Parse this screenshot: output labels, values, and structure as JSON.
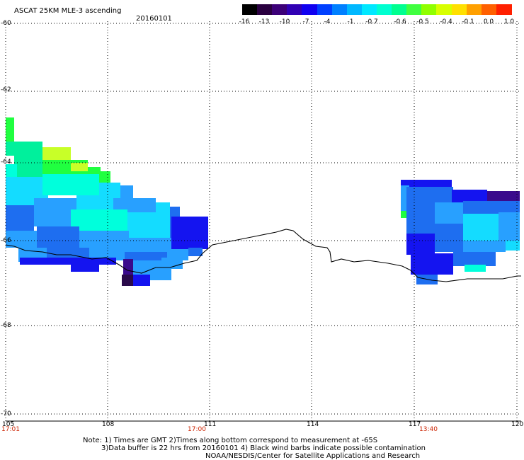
{
  "title": "ASCAT 25KM MLE-3 ascending",
  "date": "20160101",
  "colorbar": {
    "labels": [
      "-16",
      "-13",
      "-10",
      "-7",
      "-4",
      "-1",
      "-0.7",
      "-0.6",
      "-0.5",
      "-0.4",
      "-0.1",
      "0.0",
      "1.0"
    ],
    "colors": [
      "#000000",
      "#2a0040",
      "#3c0078",
      "#3000b4",
      "#1000f0",
      "#0040ff",
      "#0080ff",
      "#00b8ff",
      "#00e8ff",
      "#00ffd0",
      "#00ff90",
      "#40ff40",
      "#90ff00",
      "#d8ff00",
      "#ffe000",
      "#ffa000",
      "#ff6000",
      "#ff2000"
    ]
  },
  "lat_labels": [
    "-60",
    "-62",
    "-64",
    "-66",
    "-68",
    "-70"
  ],
  "lon_labels": [
    "105",
    "108",
    "111",
    "114",
    "117",
    "120"
  ],
  "time_labels": [
    "17:01",
    "17:00",
    "13:40"
  ],
  "time_color": "#cc2200",
  "notes": [
    "Note: 1) Times are GMT 2)Times along bottom correspond to measurement at -65S",
    "3)Data buffer is 22 hrs from 20160101 4) Black wind barbs indicate possible contamination",
    "NOAA/NESDIS/Center for Satellite Applications and Research"
  ],
  "data_colors": {
    "purple": "#3a0a8c",
    "dark_purple": "#2a0a4a",
    "blue": "#1414f0",
    "mid_blue": "#1e6ef0",
    "light_blue": "#28a0ff",
    "cyan": "#14dcff",
    "aqua": "#00ffdc",
    "green": "#00f09c",
    "bright_green": "#20ff40",
    "yellow_green": "#c8ff28",
    "coastline": "#000000"
  }
}
